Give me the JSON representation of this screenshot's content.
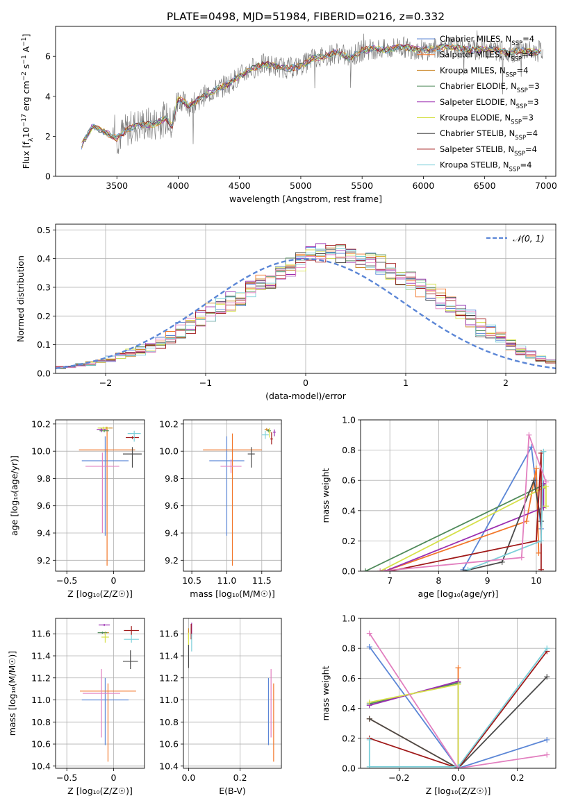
{
  "title": "PLATE=0498, MJD=51984, FIBERID=0216, z=0.332",
  "colors": {
    "Chabrier MILES": "#5b86d6",
    "Salpeter MILES": "#f2772a",
    "Kroupa MILES": "#cc8a2c",
    "Chabrier ELODIE": "#4f8a5a",
    "Salpeter ELODIE": "#9b2fb1",
    "Kroupa ELODIE": "#d6e04a",
    "Chabrier STELIB": "#4a4a4a",
    "Salpeter STELIB": "#a01919",
    "Kroupa STELIB": "#7ccfd9",
    "pink": "#e27fbf",
    "data": "#7f7f7f",
    "normal": "#5b86d6"
  },
  "chart_data": [
    {
      "id": "spectrum",
      "type": "line",
      "xlabel": "wavelength [Angstrom, rest frame]",
      "ylabel_parts": [
        "Flux [f",
        "λ",
        "10",
        "−17",
        " erg cm",
        "−2",
        " s",
        "−1",
        " A",
        "−1",
        "]"
      ],
      "xlim": [
        3000,
        7080
      ],
      "ylim": [
        0,
        7.5
      ],
      "xticks": [
        3500,
        4000,
        4500,
        5000,
        5500,
        6000,
        6500,
        7000
      ],
      "yticks": [
        0,
        2,
        4,
        6
      ],
      "continuum": {
        "x": [
          3210,
          3300,
          3400,
          3500,
          3600,
          3700,
          3800,
          3900,
          3950,
          4000,
          4100,
          4200,
          4300,
          4400,
          4500,
          4600,
          4700,
          4800,
          4900,
          5000,
          5100,
          5200,
          5300,
          5400,
          5500,
          5600,
          5700,
          5800,
          5900,
          6000,
          6100,
          6200,
          6300,
          6400,
          6500,
          6600,
          6700,
          6800,
          6900,
          6980
        ],
        "y": [
          1.5,
          2.5,
          2.2,
          1.9,
          2.4,
          2.6,
          2.6,
          2.9,
          2.5,
          3.9,
          3.5,
          4.0,
          4.3,
          4.6,
          5.0,
          5.4,
          5.6,
          5.5,
          5.4,
          5.5,
          5.9,
          6.0,
          6.2,
          5.9,
          6.3,
          6.4,
          6.3,
          6.5,
          6.4,
          6.3,
          6.4,
          6.5,
          6.4,
          6.3,
          6.4,
          6.3,
          6.2,
          6.3,
          6.2,
          6.3
        ]
      },
      "legend": [
        {
          "name": "Chabrier MILES",
          "nssp": "4"
        },
        {
          "name": "Salpeter MILES",
          "nssp": "4"
        },
        {
          "name": "Kroupa MILES",
          "nssp": "4"
        },
        {
          "name": "Chabrier ELODIE",
          "nssp": "3"
        },
        {
          "name": "Salpeter ELODIE",
          "nssp": "3"
        },
        {
          "name": "Kroupa ELODIE",
          "nssp": "3"
        },
        {
          "name": "Chabrier STELIB",
          "nssp": "4"
        },
        {
          "name": "Salpeter STELIB",
          "nssp": "4"
        },
        {
          "name": "Kroupa STELIB",
          "nssp": "4"
        }
      ]
    },
    {
      "id": "residuals",
      "type": "line",
      "xlabel": "(data-model)/error",
      "ylabel": "Normed distribution",
      "xlim": [
        -2.5,
        2.5
      ],
      "ylim": [
        0,
        0.52
      ],
      "xticks": [
        -2,
        -1,
        0,
        1,
        2
      ],
      "yticks": [
        0.0,
        0.1,
        0.2,
        0.3,
        0.4,
        0.5
      ],
      "grid": true,
      "legend": "𝒩(0, 1)",
      "legend_position": "top-right",
      "normal_curve": {
        "mean": 0,
        "sigma": 1
      },
      "histogram": {
        "bin_width": 0.1,
        "x_start": -2.5,
        "base": [
          0.02,
          0.025,
          0.03,
          0.035,
          0.04,
          0.05,
          0.06,
          0.07,
          0.08,
          0.09,
          0.11,
          0.13,
          0.15,
          0.17,
          0.19,
          0.21,
          0.23,
          0.25,
          0.27,
          0.29,
          0.31,
          0.33,
          0.35,
          0.37,
          0.39,
          0.41,
          0.42,
          0.43,
          0.42,
          0.41,
          0.4,
          0.39,
          0.38,
          0.36,
          0.34,
          0.32,
          0.3,
          0.28,
          0.26,
          0.24,
          0.22,
          0.19,
          0.16,
          0.14,
          0.12,
          0.1,
          0.08,
          0.065,
          0.05,
          0.04
        ]
      }
    },
    {
      "id": "age-vs-Z",
      "type": "scatter",
      "xlabel": "Z [log₁₀(Z/Z☉)]",
      "ylabel": "age  [log₁₀(age/yr)]",
      "xlim": [
        -0.62,
        0.33
      ],
      "ylim": [
        9.12,
        10.23
      ],
      "xticks": [
        -0.5,
        0.0
      ],
      "yticks": [
        9.2,
        9.4,
        9.6,
        9.8,
        10.0,
        10.2
      ],
      "grid": true,
      "points": [
        {
          "series": "Chabrier MILES",
          "x": -0.09,
          "y": 9.93,
          "xerr": 0.25,
          "yerr": [
            0.55,
            0.18
          ]
        },
        {
          "series": "Salpeter MILES",
          "x": -0.07,
          "y": 10.01,
          "xerr": 0.3,
          "yerr": [
            0.85,
            0.17
          ]
        },
        {
          "series": "Kroupa MILES",
          "x": -0.08,
          "y": 10.17,
          "xerr": 0.07,
          "yerr": [
            0.01,
            0.01
          ]
        },
        {
          "series": "Chabrier ELODIE",
          "x": -0.1,
          "y": 10.15,
          "xerr": 0.05,
          "yerr": [
            0.01,
            0.01
          ]
        },
        {
          "series": "Salpeter ELODIE",
          "x": -0.13,
          "y": 10.16,
          "xerr": 0.05,
          "yerr": [
            0.02,
            0.01
          ]
        },
        {
          "series": "Kroupa ELODIE",
          "x": -0.11,
          "y": 10.17,
          "xerr": 0.06,
          "yerr": [
            0.02,
            0.01
          ]
        },
        {
          "series": "Chabrier STELIB",
          "x": 0.2,
          "y": 9.98,
          "xerr": 0.1,
          "yerr": [
            0.1,
            0.05
          ]
        },
        {
          "series": "Salpeter STELIB",
          "x": 0.2,
          "y": 10.1,
          "xerr": 0.07,
          "yerr": [
            0.01,
            0.01
          ]
        },
        {
          "series": "Kroupa STELIB",
          "x": 0.22,
          "y": 10.13,
          "xerr": 0.07,
          "yerr": [
            0.06,
            0.02
          ]
        },
        {
          "series": "pink",
          "x": -0.12,
          "y": 9.89,
          "xerr": 0.18,
          "yerr": [
            0.49,
            0.1
          ]
        }
      ]
    },
    {
      "id": "age-vs-mass",
      "type": "scatter",
      "xlabel": "mass [log₁₀(M/M☉)]",
      "ylim": [
        9.12,
        10.23
      ],
      "xlim": [
        10.38,
        11.78
      ],
      "xticks": [
        10.5,
        11.0,
        11.5
      ],
      "yticks": [
        9.2,
        9.4,
        9.6,
        9.8,
        10.0,
        10.2
      ],
      "grid": true,
      "points": [
        {
          "series": "Chabrier MILES",
          "x": 11.0,
          "y": 9.93,
          "xerr": 0.25,
          "yerr": [
            0.55,
            0.18
          ]
        },
        {
          "series": "Salpeter MILES",
          "x": 11.08,
          "y": 10.01,
          "xerr": 0.42,
          "yerr": [
            0.85,
            0.12
          ]
        },
        {
          "series": "Kroupa MILES",
          "x": 11.57,
          "y": 10.16,
          "xerr": 0.03,
          "yerr": [
            0.01,
            0.01
          ]
        },
        {
          "series": "Chabrier ELODIE",
          "x": 11.6,
          "y": 10.15,
          "xerr": 0.03,
          "yerr": [
            0.01,
            0.01
          ]
        },
        {
          "series": "Salpeter ELODIE",
          "x": 11.68,
          "y": 10.14,
          "xerr": 0.02,
          "yerr": [
            0.03,
            0.02
          ]
        },
        {
          "series": "Kroupa ELODIE",
          "x": 11.61,
          "y": 10.14,
          "xerr": 0.02,
          "yerr": [
            0.04,
            0.03
          ]
        },
        {
          "series": "Chabrier STELIB",
          "x": 11.35,
          "y": 9.98,
          "xerr": 0.05,
          "yerr": [
            0.1,
            0.05
          ]
        },
        {
          "series": "Salpeter STELIB",
          "x": 11.64,
          "y": 10.09,
          "xerr": 0.02,
          "yerr": [
            0.04,
            0.05
          ]
        },
        {
          "series": "Kroupa STELIB",
          "x": 11.55,
          "y": 10.12,
          "xerr": 0.05,
          "yerr": [
            0.03,
            0.03
          ]
        },
        {
          "series": "pink",
          "x": 11.06,
          "y": 9.89,
          "xerr": 0.15,
          "yerr": [
            0.05,
            0.05
          ]
        }
      ]
    },
    {
      "id": "weight-vs-age",
      "type": "line",
      "xlabel": "age  [log₁₀(age/yr)]",
      "ylabel": "mass weight",
      "xlim": [
        6.4,
        10.4
      ],
      "ylim": [
        0,
        1
      ],
      "xticks": [
        7,
        8,
        9,
        10
      ],
      "yticks": [
        0.0,
        0.2,
        0.4,
        0.6,
        0.8,
        1.0
      ],
      "grid": true,
      "series": [
        {
          "name": "Chabrier MILES",
          "x": [
            8.5,
            9.9,
            10.1
          ],
          "y": [
            0.01,
            0.82,
            0.28
          ]
        },
        {
          "name": "Salpeter MILES",
          "x": [
            6.9,
            9.8,
            10.0,
            10.05
          ],
          "y": [
            0.0,
            0.33,
            0.68,
            0.12
          ]
        },
        {
          "name": "Chabrier ELODIE",
          "x": [
            6.5,
            10.15,
            10.15
          ],
          "y": [
            0.0,
            0.57,
            0.55
          ]
        },
        {
          "name": "Salpeter ELODIE",
          "x": [
            6.9,
            10.15,
            10.15
          ],
          "y": [
            0.0,
            0.42,
            0.58
          ]
        },
        {
          "name": "Kroupa ELODIE",
          "x": [
            6.8,
            10.2,
            10.2
          ],
          "y": [
            0.0,
            0.56,
            0.43
          ]
        },
        {
          "name": "Chabrier STELIB",
          "x": [
            8.5,
            9.3,
            9.95,
            10.1
          ],
          "y": [
            0.0,
            0.06,
            0.6,
            0.33
          ]
        },
        {
          "name": "Salpeter STELIB",
          "x": [
            7.0,
            10.0,
            10.1,
            10.1
          ],
          "y": [
            0.0,
            0.2,
            0.78,
            0.01
          ]
        },
        {
          "name": "Kroupa STELIB",
          "x": [
            8.6,
            10.1,
            10.15
          ],
          "y": [
            0.01,
            0.2,
            0.79
          ]
        },
        {
          "name": "pink",
          "x": [
            6.8,
            9.7,
            9.85,
            10.2
          ],
          "y": [
            0.0,
            0.09,
            0.9,
            0.59
          ]
        }
      ]
    },
    {
      "id": "mass-vs-Z",
      "type": "scatter",
      "xlabel": "Z [log₁₀(Z/Z☉)]",
      "ylabel": "mass [log₁₀(M/M☉)]",
      "xlim": [
        -0.62,
        0.33
      ],
      "ylim": [
        10.38,
        11.74
      ],
      "xticks": [
        -0.5,
        0.0
      ],
      "yticks": [
        10.4,
        10.6,
        10.8,
        11.0,
        11.2,
        11.4,
        11.6
      ],
      "grid": true,
      "points": [
        {
          "series": "Chabrier MILES",
          "x": -0.09,
          "y": 11.0,
          "xerr": 0.25,
          "yerr": [
            0.41,
            0.2
          ]
        },
        {
          "series": "Salpeter MILES",
          "x": -0.06,
          "y": 11.08,
          "xerr": 0.3,
          "yerr": [
            0.64,
            0.07
          ]
        },
        {
          "series": "Kroupa MILES",
          "x": -0.09,
          "y": 11.61,
          "xerr": 0.04,
          "yerr": [
            0.02,
            0.01
          ]
        },
        {
          "series": "Chabrier ELODIE",
          "x": -0.12,
          "y": 11.61,
          "xerr": 0.05,
          "yerr": [
            0.01,
            0.01
          ]
        },
        {
          "series": "Salpeter ELODIE",
          "x": -0.1,
          "y": 11.68,
          "xerr": 0.06,
          "yerr": [
            0.01,
            0.01
          ]
        },
        {
          "series": "Kroupa ELODIE",
          "x": -0.09,
          "y": 11.57,
          "xerr": 0.04,
          "yerr": [
            0.05,
            0.04
          ]
        },
        {
          "series": "Chabrier STELIB",
          "x": 0.18,
          "y": 11.35,
          "xerr": 0.08,
          "yerr": [
            0.07,
            0.1
          ]
        },
        {
          "series": "Salpeter STELIB",
          "x": 0.19,
          "y": 11.63,
          "xerr": 0.08,
          "yerr": [
            0.04,
            0.04
          ]
        },
        {
          "series": "Kroupa STELIB",
          "x": 0.19,
          "y": 11.55,
          "xerr": 0.08,
          "yerr": [
            0.03,
            0.04
          ]
        },
        {
          "series": "pink",
          "x": -0.13,
          "y": 11.06,
          "xerr": 0.2,
          "yerr": [
            0.4,
            0.22
          ]
        }
      ]
    },
    {
      "id": "mass-vs-EBV",
      "type": "scatter",
      "xlabel": "E(B-V)",
      "xlim": [
        -0.02,
        0.36
      ],
      "ylim": [
        10.38,
        11.74
      ],
      "xticks": [
        0.0,
        0.2
      ],
      "yticks": [
        10.4,
        10.6,
        10.8,
        11.0,
        11.2,
        11.4,
        11.6
      ],
      "grid": true,
      "points": [
        {
          "series": "Chabrier MILES",
          "x": 0.31,
          "y": 11.0,
          "xerr": 0.0,
          "yerr": [
            0.41,
            0.2
          ]
        },
        {
          "series": "Salpeter MILES",
          "x": 0.33,
          "y": 11.08,
          "xerr": 0.0,
          "yerr": [
            0.64,
            0.07
          ]
        },
        {
          "series": "pink",
          "x": 0.32,
          "y": 11.06,
          "xerr": 0.0,
          "yerr": [
            0.4,
            0.22
          ]
        },
        {
          "series": "Kroupa MILES",
          "x": 0.0,
          "y": 11.6,
          "xerr": 0.0,
          "yerr": [
            0.05,
            0.05
          ]
        },
        {
          "series": "Chabrier ELODIE",
          "x": 0.01,
          "y": 11.6,
          "xerr": 0.0,
          "yerr": [
            0.05,
            0.05
          ]
        },
        {
          "series": "Salpeter ELODIE",
          "x": 0.012,
          "y": 11.64,
          "xerr": 0.0,
          "yerr": [
            0.06,
            0.06
          ]
        },
        {
          "series": "Kroupa ELODIE",
          "x": 0.0,
          "y": 11.56,
          "xerr": 0.0,
          "yerr": [
            0.07,
            0.05
          ]
        },
        {
          "series": "Chabrier STELIB",
          "x": 0.0,
          "y": 11.4,
          "xerr": 0.0,
          "yerr": [
            0.11,
            0.1
          ]
        },
        {
          "series": "Salpeter STELIB",
          "x": 0.01,
          "y": 11.62,
          "xerr": 0.0,
          "yerr": [
            0.07,
            0.07
          ]
        },
        {
          "series": "Kroupa STELIB",
          "x": 0.012,
          "y": 11.52,
          "xerr": 0.0,
          "yerr": [
            0.08,
            0.08
          ]
        }
      ]
    },
    {
      "id": "weight-vs-Z",
      "type": "line",
      "xlabel": "Z [log₁₀(Z/Z☉)]",
      "ylabel": "mass weight",
      "xlim": [
        -0.33,
        0.33
      ],
      "ylim": [
        0,
        1
      ],
      "xticks": [
        -0.2,
        0.0,
        0.2
      ],
      "yticks": [
        0.0,
        0.2,
        0.4,
        0.6,
        0.8,
        1.0
      ],
      "grid": true,
      "series": [
        {
          "name": "Chabrier MILES",
          "x": [
            -0.3,
            0.0,
            0.3
          ],
          "y": [
            0.81,
            0.0,
            0.19
          ]
        },
        {
          "name": "Salpeter MILES",
          "x": [
            -0.3,
            0.0,
            0.0
          ],
          "y": [
            0.33,
            0.0,
            0.67
          ]
        },
        {
          "name": "Chabrier ELODIE",
          "x": [
            -0.3,
            0.0,
            0.0
          ],
          "y": [
            0.43,
            0.57,
            0.0
          ]
        },
        {
          "name": "Salpeter ELODIE",
          "x": [
            -0.3,
            0.0,
            0.0
          ],
          "y": [
            0.42,
            0.58,
            0.0
          ]
        },
        {
          "name": "Kroupa ELODIE",
          "x": [
            -0.3,
            0.0,
            0.0
          ],
          "y": [
            0.44,
            0.56,
            0.0
          ]
        },
        {
          "name": "Chabrier STELIB",
          "x": [
            -0.3,
            0.0,
            0.3
          ],
          "y": [
            0.33,
            0.0,
            0.61
          ]
        },
        {
          "name": "Salpeter STELIB",
          "x": [
            -0.3,
            0.0,
            0.3
          ],
          "y": [
            0.2,
            0.0,
            0.78
          ]
        },
        {
          "name": "Kroupa STELIB",
          "x": [
            -0.3,
            -0.3,
            0.0,
            0.3
          ],
          "y": [
            0.19,
            0.01,
            0.01,
            0.8
          ]
        },
        {
          "name": "pink",
          "x": [
            -0.3,
            0.0,
            0.3
          ],
          "y": [
            0.9,
            0.0,
            0.09
          ]
        }
      ]
    }
  ]
}
